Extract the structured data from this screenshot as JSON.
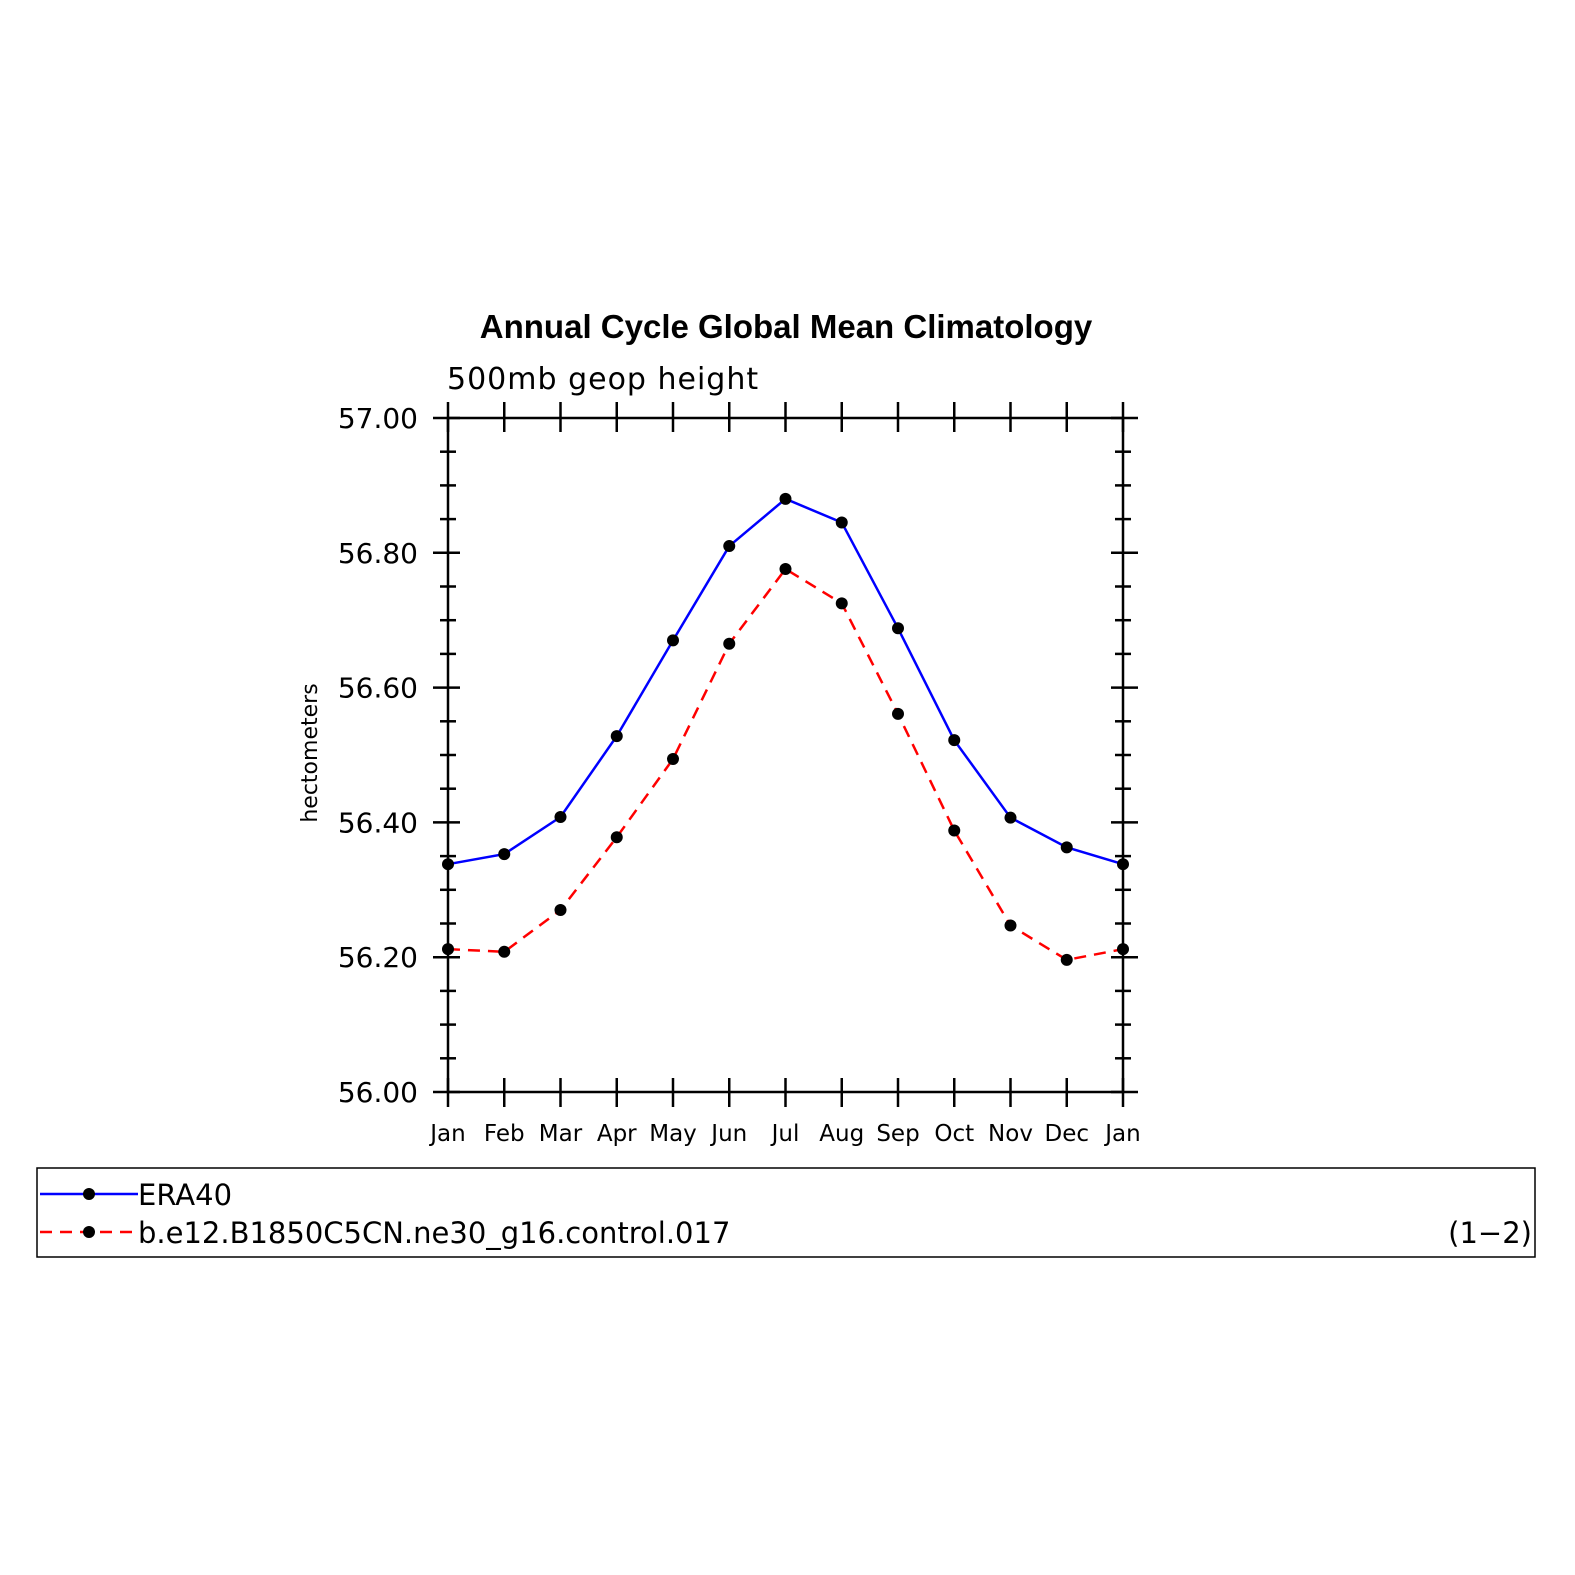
{
  "chart_data": {
    "type": "line",
    "title": "Annual Cycle Global Mean Climatology",
    "subtitle": "500mb geop height",
    "ylabel": "hectometers",
    "xlabel": "",
    "categories": [
      "Jan",
      "Feb",
      "Mar",
      "Apr",
      "May",
      "Jun",
      "Jul",
      "Aug",
      "Sep",
      "Oct",
      "Nov",
      "Dec",
      "Jan"
    ],
    "ylim": [
      56.0,
      57.0
    ],
    "yticks": [
      56.0,
      56.2,
      56.4,
      56.6,
      56.8,
      57.0
    ],
    "ytick_labels": [
      "56.00",
      "56.20",
      "56.40",
      "56.60",
      "56.80",
      "57.00"
    ],
    "ytick_minor_step": 0.05,
    "grid": false,
    "legend_position": "bottom",
    "legend_note": "(1−2)",
    "series": [
      {
        "name": "ERA40",
        "color": "#0000ff",
        "style": "solid",
        "marker": "filled-circle",
        "values": [
          56.338,
          56.353,
          56.408,
          56.528,
          56.67,
          56.81,
          56.88,
          56.845,
          56.688,
          56.522,
          56.407,
          56.363,
          56.338
        ]
      },
      {
        "name": "b.e12.B1850C5CN.ne30_g16.control.017",
        "color": "#ff0000",
        "style": "dashed",
        "marker": "filled-circle",
        "values": [
          56.212,
          56.208,
          56.27,
          56.378,
          56.494,
          56.665,
          56.776,
          56.725,
          56.561,
          56.388,
          56.247,
          56.196,
          56.212
        ]
      }
    ]
  }
}
